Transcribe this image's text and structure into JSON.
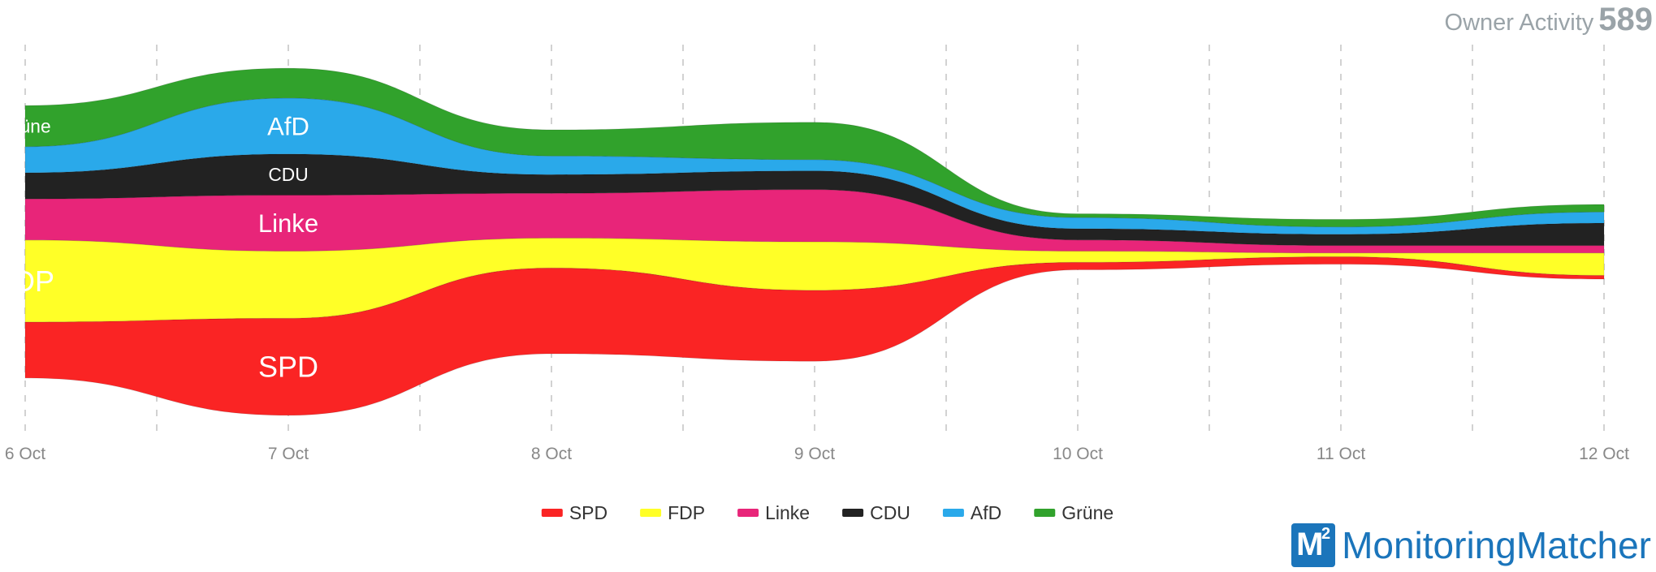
{
  "header": {
    "title_label": "Owner Activity",
    "title_count": "589"
  },
  "brand": {
    "logo_mark": "M",
    "logo_sup": "2",
    "name": "MonitoringMatcher"
  },
  "chart_data": {
    "type": "area",
    "style": "streamgraph",
    "categories": [
      "6 Oct",
      "7 Oct",
      "8 Oct",
      "9 Oct",
      "10 Oct",
      "11 Oct",
      "12 Oct"
    ],
    "grid": "vertical-dashed",
    "legend_position": "bottom-center",
    "series": [
      {
        "name": "SPD",
        "color": "#fa2424",
        "values": [
          15,
          26,
          23,
          19,
          2,
          2,
          1
        ]
      },
      {
        "name": "FDP",
        "color": "#ffff27",
        "values": [
          22,
          18,
          8,
          13,
          3,
          1,
          6
        ]
      },
      {
        "name": "Linke",
        "color": "#e82579",
        "values": [
          11,
          15,
          12,
          14,
          3,
          2,
          2
        ]
      },
      {
        "name": "CDU",
        "color": "#222222",
        "values": [
          7,
          11,
          5,
          5,
          3,
          3,
          6
        ]
      },
      {
        "name": "AfD",
        "color": "#2aa9ea",
        "values": [
          7,
          15,
          5,
          3,
          3,
          2,
          3
        ]
      },
      {
        "name": "Grüne",
        "color": "#31a22c",
        "values": [
          11,
          8,
          7,
          10,
          1,
          2,
          2
        ]
      }
    ],
    "annotations": [
      {
        "text": "SPD",
        "series": "SPD"
      },
      {
        "text": "FDP",
        "series": "FDP"
      },
      {
        "text": "Linke",
        "series": "Linke"
      },
      {
        "text": "CDU",
        "series": "CDU"
      },
      {
        "text": "AfD",
        "series": "AfD"
      },
      {
        "text": "Grüne",
        "series": "Grüne"
      }
    ]
  }
}
